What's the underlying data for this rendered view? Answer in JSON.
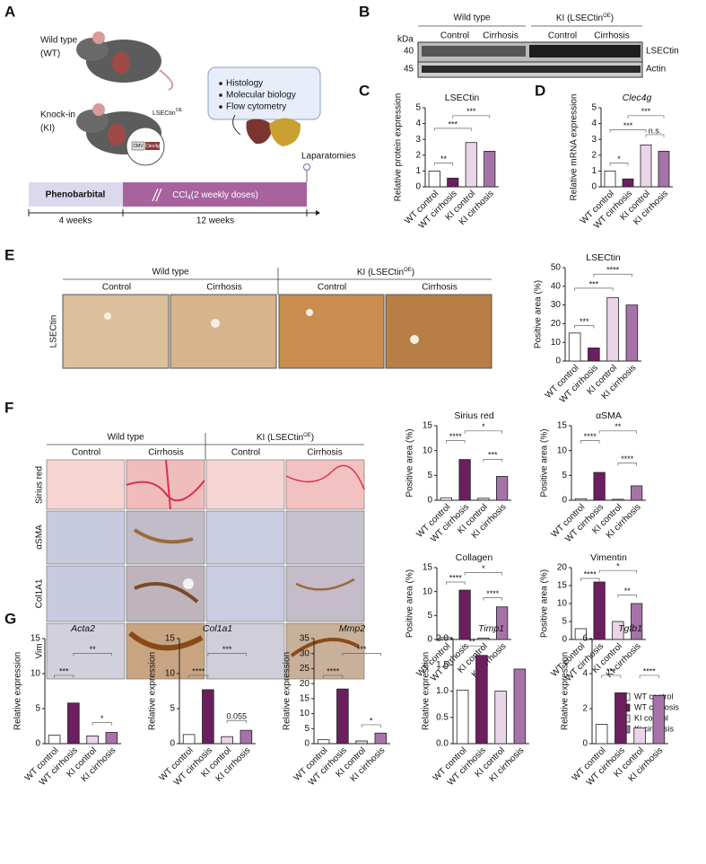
{
  "panel_labels": [
    "A",
    "B",
    "C",
    "D",
    "E",
    "F",
    "G"
  ],
  "panel_a": {
    "wt_label": [
      "Wild type",
      "(WT)"
    ],
    "ki_label": [
      "Knock-in",
      "(KI)"
    ],
    "construct": {
      "name": "LSECtin",
      "sup": "OE"
    },
    "promoter": "CMV",
    "gene": "Clec4g",
    "analyses": [
      "Histology",
      "Molecular biology",
      "Flow cytometry"
    ],
    "endpoint": "Laparatomies",
    "phase1": "Phenobarbital",
    "phase2": {
      "text": "CCl",
      "sub": "4",
      "rest": "(2 weekly doses)"
    },
    "durations": [
      "4 weeks",
      "12 weeks"
    ]
  },
  "panel_b": {
    "groups": [
      "Wild type",
      {
        "text": "KI (LSECtin",
        "sup": "OE",
        "end": ")"
      }
    ],
    "conditions": [
      "Control",
      "Cirrhosis",
      "Control",
      "Cirrhosis"
    ],
    "unit": "kDa",
    "sizes": [
      "40",
      "45"
    ],
    "proteins": [
      "LSECtin",
      "Actin"
    ]
  },
  "panel_e": {
    "groups": [
      "Wild type",
      {
        "text": "KI (LSECtin",
        "sup": "OE",
        "end": ")"
      }
    ],
    "conditions": [
      "Control",
      "Cirrhosis",
      "Control",
      "Cirrhosis"
    ],
    "rows": [
      "LSECtin"
    ]
  },
  "panel_f": {
    "groups": [
      "Wild type",
      {
        "text": "KI (LSECtin",
        "sup": "OE",
        "end": ")"
      }
    ],
    "conditions": [
      "Control",
      "Cirrhosis",
      "Control",
      "Cirrhosis"
    ],
    "rows": [
      "Sirius red",
      "αSMA",
      "Col1A1",
      "Vim"
    ]
  },
  "legend": [
    {
      "name": "WT control",
      "color": "#ffffff"
    },
    {
      "name": "WT cirrhosis",
      "color": "#6b1f5e"
    },
    {
      "name": "KI control",
      "color": "#ead5e8"
    },
    {
      "name": "Ki cirrhosis",
      "color": "#a673a8"
    }
  ],
  "chart_data": [
    {
      "type": "bar",
      "title": "LSECtin",
      "y_label": "Relative protein expression",
      "categories": [
        "WT control",
        "WT cirrhosis",
        "KI control",
        "KI cirrhosis"
      ],
      "values": [
        1.0,
        0.55,
        2.8,
        2.25
      ],
      "colors": [
        "#ffffff",
        "#6b1f5e",
        "#ead5e8",
        "#a673a8"
      ],
      "ylim": [
        0,
        5
      ],
      "yticks": [
        0,
        1,
        2,
        3,
        4,
        5
      ],
      "annotations": [
        "**",
        "***",
        "***"
      ]
    },
    {
      "type": "bar",
      "title": "Clec4g",
      "title_style": "italic",
      "y_label": "Relative mRNA expression",
      "categories": [
        "WT control",
        "WT cirrhosis",
        "KI control",
        "KI cirrhosis"
      ],
      "values": [
        1.0,
        0.5,
        2.65,
        2.25
      ],
      "colors": [
        "#ffffff",
        "#6b1f5e",
        "#ead5e8",
        "#a673a8"
      ],
      "ylim": [
        0,
        5
      ],
      "yticks": [
        0,
        1,
        2,
        3,
        4,
        5
      ],
      "annotations": [
        "*",
        "***",
        "***",
        "n.s."
      ]
    },
    {
      "type": "bar",
      "title": "LSECtin",
      "y_label": "Positive area (%)",
      "categories": [
        "WT control",
        "WT cirrhosis",
        "KI control",
        "KI cirrhosis"
      ],
      "values": [
        15,
        7,
        34,
        30
      ],
      "colors": [
        "#ffffff",
        "#6b1f5e",
        "#ead5e8",
        "#a673a8"
      ],
      "ylim": [
        0,
        50
      ],
      "yticks": [
        0,
        10,
        20,
        30,
        40,
        50
      ],
      "annotations": [
        "***",
        "***",
        "****"
      ]
    },
    {
      "type": "bar",
      "title": "Sirius red",
      "y_label": "Positive area (%)",
      "categories": [
        "WT control",
        "WT cirrhosis",
        "KI control",
        "KI cirrhosis"
      ],
      "values": [
        0.5,
        8.2,
        0.4,
        4.8
      ],
      "colors": [
        "#ffffff",
        "#6b1f5e",
        "#ead5e8",
        "#a673a8"
      ],
      "ylim": [
        0,
        15
      ],
      "yticks": [
        0,
        5,
        10,
        15
      ],
      "annotations": [
        "****",
        "*",
        "***"
      ]
    },
    {
      "type": "bar",
      "title": "αSMA",
      "y_label": "Positive area (%)",
      "categories": [
        "WT control",
        "WT cirrhosis",
        "KI control",
        "KI cirrhosis"
      ],
      "values": [
        0.3,
        5.6,
        0.2,
        2.9
      ],
      "colors": [
        "#ffffff",
        "#6b1f5e",
        "#ead5e8",
        "#a673a8"
      ],
      "ylim": [
        0,
        15
      ],
      "yticks": [
        0,
        5,
        10,
        15
      ],
      "annotations": [
        "****",
        "**",
        "****"
      ]
    },
    {
      "type": "bar",
      "title": "Collagen",
      "y_label": "Positive area (%)",
      "categories": [
        "WT control",
        "WT cirrhosis",
        "KI control",
        "KI cirrhosis"
      ],
      "values": [
        0.4,
        10.3,
        0.3,
        6.8
      ],
      "colors": [
        "#ffffff",
        "#6b1f5e",
        "#ead5e8",
        "#a673a8"
      ],
      "ylim": [
        0,
        15
      ],
      "yticks": [
        0,
        5,
        10,
        15
      ],
      "annotations": [
        "****",
        "*",
        "****"
      ]
    },
    {
      "type": "bar",
      "title": "Vimentin",
      "y_label": "Positive area (%)",
      "categories": [
        "WT control",
        "WT cirrhosis",
        "KI control",
        "KI cirrhosis"
      ],
      "values": [
        3,
        16,
        5,
        10
      ],
      "colors": [
        "#ffffff",
        "#6b1f5e",
        "#ead5e8",
        "#a673a8"
      ],
      "ylim": [
        0,
        20
      ],
      "yticks": [
        0,
        5,
        10,
        15,
        20
      ],
      "annotations": [
        "****",
        "*",
        "**"
      ]
    },
    {
      "type": "bar",
      "title": "Acta2",
      "title_style": "italic",
      "y_label": "Relative expression",
      "categories": [
        "WT control",
        "WT cirrhosis",
        "KI control",
        "KI cirrhosis"
      ],
      "values": [
        1.2,
        5.8,
        1.1,
        1.6
      ],
      "colors": [
        "#ffffff",
        "#6b1f5e",
        "#ead5e8",
        "#a673a8"
      ],
      "ylim": [
        0,
        15
      ],
      "yticks": [
        0,
        5,
        10,
        15
      ],
      "annotations": [
        "***",
        "**",
        "*"
      ]
    },
    {
      "type": "bar",
      "title": "Col1a1",
      "title_style": "italic",
      "y_label": "Relative expression",
      "categories": [
        "WT control",
        "WT cirrhosis",
        "KI control",
        "KI cirrhosis"
      ],
      "values": [
        1.3,
        7.7,
        1.0,
        1.9
      ],
      "colors": [
        "#ffffff",
        "#6b1f5e",
        "#ead5e8",
        "#a673a8"
      ],
      "ylim": [
        0,
        15
      ],
      "yticks": [
        0,
        5,
        10,
        15
      ],
      "annotations": [
        "****",
        "***",
        "0.055"
      ]
    },
    {
      "type": "bar",
      "title": "Mmp2",
      "title_style": "italic",
      "y_label": "Relative expression",
      "categories": [
        "WT control",
        "WT cirrhosis",
        "KI control",
        "KI cirrhosis"
      ],
      "values": [
        1.3,
        18.2,
        0.9,
        3.5
      ],
      "colors": [
        "#ffffff",
        "#6b1f5e",
        "#ead5e8",
        "#a673a8"
      ],
      "ylim": [
        0,
        35
      ],
      "yticks": [
        0,
        5,
        10,
        15,
        20,
        25,
        30,
        35
      ],
      "annotations": [
        "****",
        "***",
        "*"
      ]
    },
    {
      "type": "bar",
      "title": "Timp1",
      "title_style": "italic",
      "y_label": "Relative expression",
      "categories": [
        "WT control",
        "WT cirrhosis",
        "KI control",
        "KI cirrhosis"
      ],
      "values": [
        1.02,
        1.68,
        1.0,
        1.42
      ],
      "colors": [
        "#ffffff",
        "#6b1f5e",
        "#ead5e8",
        "#a673a8"
      ],
      "ylim": [
        0,
        2
      ],
      "yticks": [
        {
          "value": 0,
          "label": "0.0"
        },
        {
          "value": 0.5,
          "label": "0.5"
        },
        {
          "value": 1,
          "label": "1.0"
        },
        {
          "value": 1.5,
          "label": "1.5"
        },
        {
          "value": 2,
          "label": "2.0"
        }
      ],
      "annotations": [
        "**"
      ]
    },
    {
      "type": "bar",
      "title": "Tgfb1",
      "title_style": "italic",
      "y_label": "Relative expression",
      "categories": [
        "WT control",
        "WT cirrhosis",
        "KI control",
        "KI cirrhosis"
      ],
      "values": [
        1.1,
        2.9,
        0.9,
        2.75
      ],
      "colors": [
        "#ffffff",
        "#6b1f5e",
        "#ead5e8",
        "#a673a8"
      ],
      "ylim": [
        0,
        6
      ],
      "yticks": [
        0,
        2,
        4,
        6
      ],
      "annotations": [
        "***",
        "****"
      ]
    }
  ]
}
